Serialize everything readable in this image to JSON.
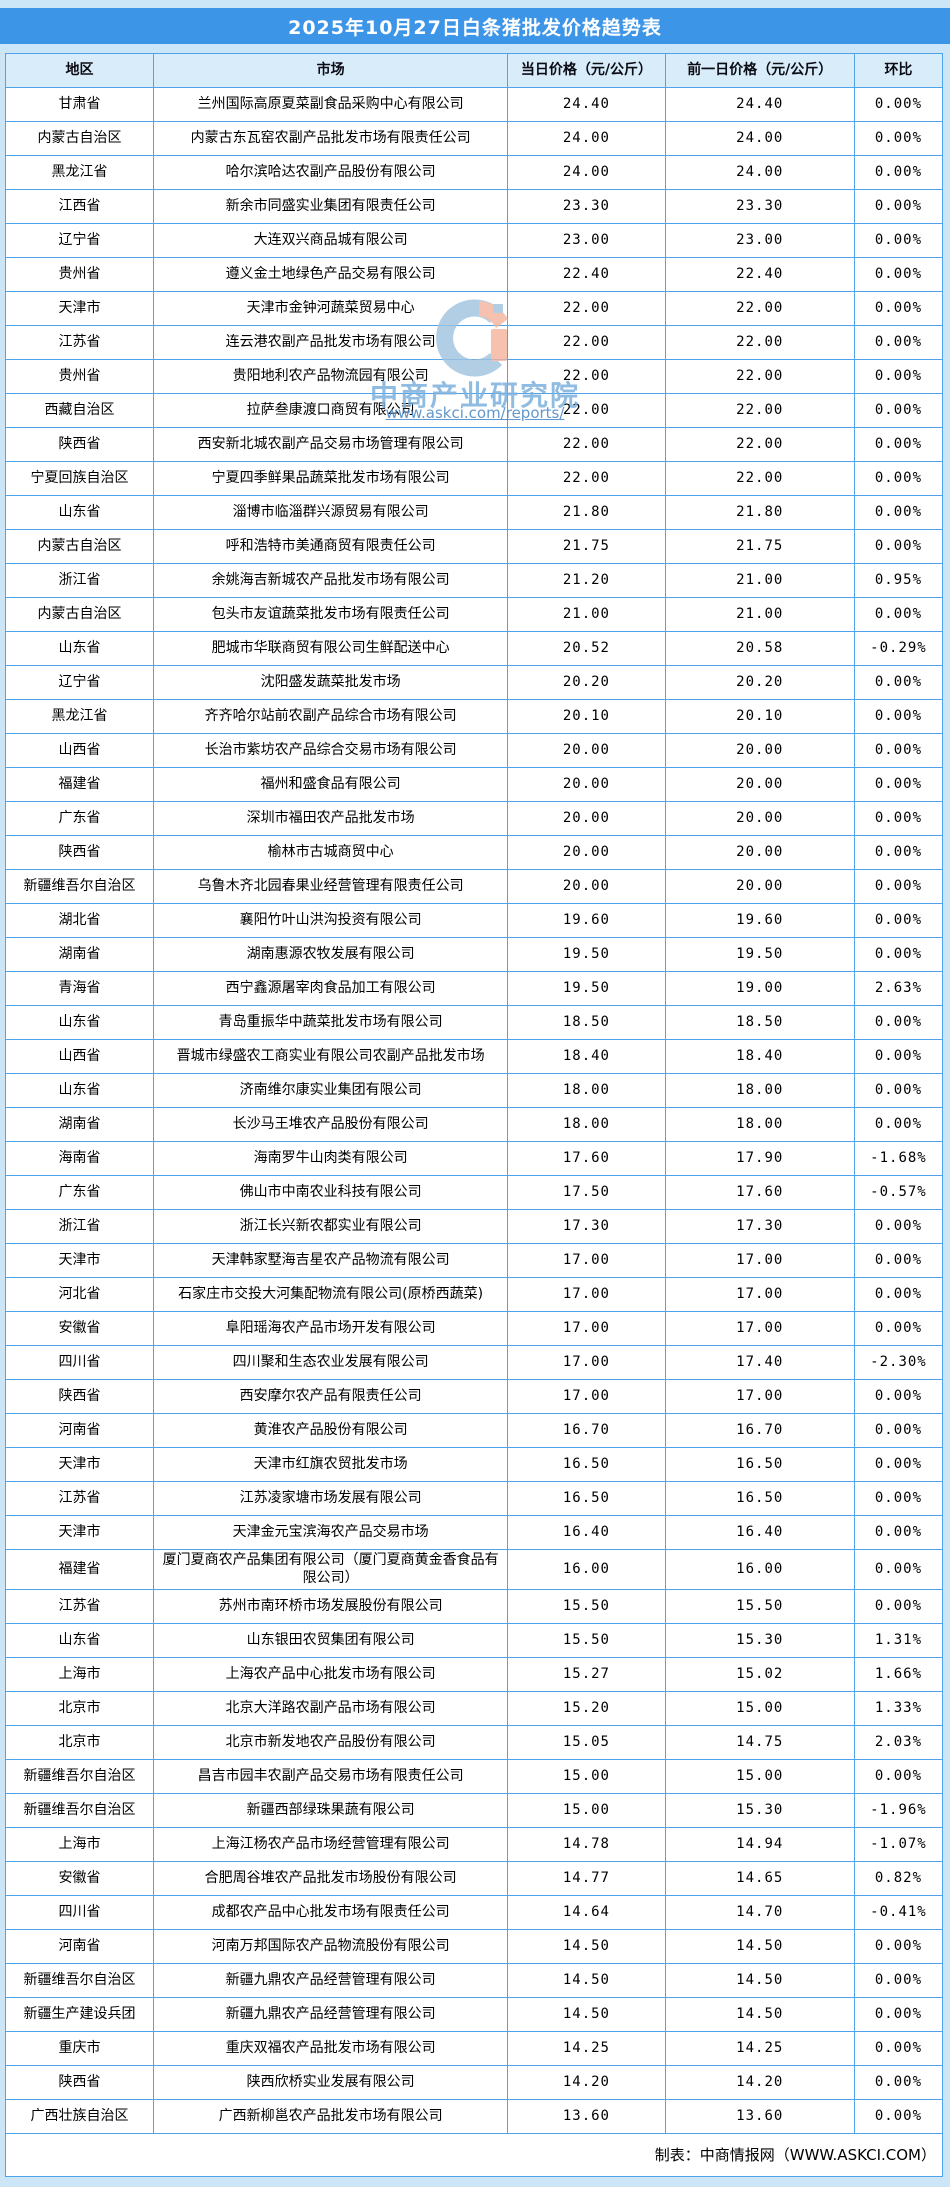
{
  "chart_data": {
    "type": "table",
    "title": "2025年10月27日白条猪批发价格趋势表",
    "columns": [
      "地区",
      "市场",
      "当日价格（元/公斤）",
      "前一日价格（元/公斤）",
      "环比"
    ],
    "rows": [
      [
        "甘肃省",
        "兰州国际高原夏菜副食品采购中心有限公司",
        "24.40",
        "24.40",
        "0.00%"
      ],
      [
        "内蒙古自治区",
        "内蒙古东瓦窑农副产品批发市场有限责任公司",
        "24.00",
        "24.00",
        "0.00%"
      ],
      [
        "黑龙江省",
        "哈尔滨哈达农副产品股份有限公司",
        "24.00",
        "24.00",
        "0.00%"
      ],
      [
        "江西省",
        "新余市同盛实业集团有限责任公司",
        "23.30",
        "23.30",
        "0.00%"
      ],
      [
        "辽宁省",
        "大连双兴商品城有限公司",
        "23.00",
        "23.00",
        "0.00%"
      ],
      [
        "贵州省",
        "遵义金土地绿色产品交易有限公司",
        "22.40",
        "22.40",
        "0.00%"
      ],
      [
        "天津市",
        "天津市金钟河蔬菜贸易中心",
        "22.00",
        "22.00",
        "0.00%"
      ],
      [
        "江苏省",
        "连云港农副产品批发市场有限公司",
        "22.00",
        "22.00",
        "0.00%"
      ],
      [
        "贵州省",
        "贵阳地利农产品物流园有限公司",
        "22.00",
        "22.00",
        "0.00%"
      ],
      [
        "西藏自治区",
        "拉萨叁康渡口商贸有限公司",
        "22.00",
        "22.00",
        "0.00%"
      ],
      [
        "陕西省",
        "西安新北城农副产品交易市场管理有限公司",
        "22.00",
        "22.00",
        "0.00%"
      ],
      [
        "宁夏回族自治区",
        "宁夏四季鲜果品蔬菜批发市场有限公司",
        "22.00",
        "22.00",
        "0.00%"
      ],
      [
        "山东省",
        "淄博市临淄群兴源贸易有限公司",
        "21.80",
        "21.80",
        "0.00%"
      ],
      [
        "内蒙古自治区",
        "呼和浩特市美通商贸有限责任公司",
        "21.75",
        "21.75",
        "0.00%"
      ],
      [
        "浙江省",
        "余姚海吉新城农产品批发市场有限公司",
        "21.20",
        "21.00",
        "0.95%"
      ],
      [
        "内蒙古自治区",
        "包头市友谊蔬菜批发市场有限责任公司",
        "21.00",
        "21.00",
        "0.00%"
      ],
      [
        "山东省",
        "肥城市华联商贸有限公司生鲜配送中心",
        "20.52",
        "20.58",
        "-0.29%"
      ],
      [
        "辽宁省",
        "沈阳盛发蔬菜批发市场",
        "20.20",
        "20.20",
        "0.00%"
      ],
      [
        "黑龙江省",
        "齐齐哈尔站前农副产品综合市场有限公司",
        "20.10",
        "20.10",
        "0.00%"
      ],
      [
        "山西省",
        "长治市紫坊农产品综合交易市场有限公司",
        "20.00",
        "20.00",
        "0.00%"
      ],
      [
        "福建省",
        "福州和盛食品有限公司",
        "20.00",
        "20.00",
        "0.00%"
      ],
      [
        "广东省",
        "深圳市福田农产品批发市场",
        "20.00",
        "20.00",
        "0.00%"
      ],
      [
        "陕西省",
        "榆林市古城商贸中心",
        "20.00",
        "20.00",
        "0.00%"
      ],
      [
        "新疆维吾尔自治区",
        "乌鲁木齐北园春果业经营管理有限责任公司",
        "20.00",
        "20.00",
        "0.00%"
      ],
      [
        "湖北省",
        "襄阳竹叶山洪沟投资有限公司",
        "19.60",
        "19.60",
        "0.00%"
      ],
      [
        "湖南省",
        "湖南惠源农牧发展有限公司",
        "19.50",
        "19.50",
        "0.00%"
      ],
      [
        "青海省",
        "西宁鑫源屠宰肉食品加工有限公司",
        "19.50",
        "19.00",
        "2.63%"
      ],
      [
        "山东省",
        "青岛重振华中蔬菜批发市场有限公司",
        "18.50",
        "18.50",
        "0.00%"
      ],
      [
        "山西省",
        "晋城市绿盛农工商实业有限公司农副产品批发市场",
        "18.40",
        "18.40",
        "0.00%"
      ],
      [
        "山东省",
        "济南维尔康实业集团有限公司",
        "18.00",
        "18.00",
        "0.00%"
      ],
      [
        "湖南省",
        "长沙马王堆农产品股份有限公司",
        "18.00",
        "18.00",
        "0.00%"
      ],
      [
        "海南省",
        "海南罗牛山肉类有限公司",
        "17.60",
        "17.90",
        "-1.68%"
      ],
      [
        "广东省",
        "佛山市中南农业科技有限公司",
        "17.50",
        "17.60",
        "-0.57%"
      ],
      [
        "浙江省",
        "浙江长兴新农都实业有限公司",
        "17.30",
        "17.30",
        "0.00%"
      ],
      [
        "天津市",
        "天津韩家墅海吉星农产品物流有限公司",
        "17.00",
        "17.00",
        "0.00%"
      ],
      [
        "河北省",
        "石家庄市交投大河集配物流有限公司(原桥西蔬菜)",
        "17.00",
        "17.00",
        "0.00%"
      ],
      [
        "安徽省",
        "阜阳瑶海农产品市场开发有限公司",
        "17.00",
        "17.00",
        "0.00%"
      ],
      [
        "四川省",
        "四川聚和生态农业发展有限公司",
        "17.00",
        "17.40",
        "-2.30%"
      ],
      [
        "陕西省",
        "西安摩尔农产品有限责任公司",
        "17.00",
        "17.00",
        "0.00%"
      ],
      [
        "河南省",
        "黄淮农产品股份有限公司",
        "16.70",
        "16.70",
        "0.00%"
      ],
      [
        "天津市",
        "天津市红旗农贸批发市场",
        "16.50",
        "16.50",
        "0.00%"
      ],
      [
        "江苏省",
        "江苏凌家塘市场发展有限公司",
        "16.50",
        "16.50",
        "0.00%"
      ],
      [
        "天津市",
        "天津金元宝滨海农产品交易市场",
        "16.40",
        "16.40",
        "0.00%"
      ],
      [
        "福建省",
        "厦门夏商农产品集团有限公司（厦门夏商黄金香食品有限公司）",
        "16.00",
        "16.00",
        "0.00%"
      ],
      [
        "江苏省",
        "苏州市南环桥市场发展股份有限公司",
        "15.50",
        "15.50",
        "0.00%"
      ],
      [
        "山东省",
        "山东银田农贸集团有限公司",
        "15.50",
        "15.30",
        "1.31%"
      ],
      [
        "上海市",
        "上海农产品中心批发市场有限公司",
        "15.27",
        "15.02",
        "1.66%"
      ],
      [
        "北京市",
        "北京大洋路农副产品市场有限公司",
        "15.20",
        "15.00",
        "1.33%"
      ],
      [
        "北京市",
        "北京市新发地农产品股份有限公司",
        "15.05",
        "14.75",
        "2.03%"
      ],
      [
        "新疆维吾尔自治区",
        "昌吉市园丰农副产品交易市场有限责任公司",
        "15.00",
        "15.00",
        "0.00%"
      ],
      [
        "新疆维吾尔自治区",
        "新疆西部绿珠果蔬有限公司",
        "15.00",
        "15.30",
        "-1.96%"
      ],
      [
        "上海市",
        "上海江杨农产品市场经营管理有限公司",
        "14.78",
        "14.94",
        "-1.07%"
      ],
      [
        "安徽省",
        "合肥周谷堆农产品批发市场股份有限公司",
        "14.77",
        "14.65",
        "0.82%"
      ],
      [
        "四川省",
        "成都农产品中心批发市场有限责任公司",
        "14.64",
        "14.70",
        "-0.41%"
      ],
      [
        "河南省",
        "河南万邦国际农产品物流股份有限公司",
        "14.50",
        "14.50",
        "0.00%"
      ],
      [
        "新疆维吾尔自治区",
        "新疆九鼎农产品经营管理有限公司",
        "14.50",
        "14.50",
        "0.00%"
      ],
      [
        "新疆生产建设兵团",
        "新疆九鼎农产品经营管理有限公司",
        "14.50",
        "14.50",
        "0.00%"
      ],
      [
        "重庆市",
        "重庆双福农产品批发市场有限公司",
        "14.25",
        "14.25",
        "0.00%"
      ],
      [
        "陕西省",
        "陕西欣桥实业发展有限公司",
        "14.20",
        "14.20",
        "0.00%"
      ],
      [
        "广西壮族自治区",
        "广西新柳邕农产品批发市场有限公司",
        "13.60",
        "13.60",
        "0.00%"
      ]
    ]
  },
  "footer": {
    "credit": "制表：中商情报网（WWW.ASKCI.COM）"
  },
  "watermark": {
    "brand": "中商产业研究院",
    "url": "www.askci.com/reports/"
  },
  "colors": {
    "title_bar": "#3d95e8",
    "table_border": "#4fa3ea",
    "header_bg": "#d8ecfa",
    "page_bg": "#cde6f7",
    "watermark_blue": "#9fc3de",
    "watermark_salmon": "#f4b29c"
  }
}
